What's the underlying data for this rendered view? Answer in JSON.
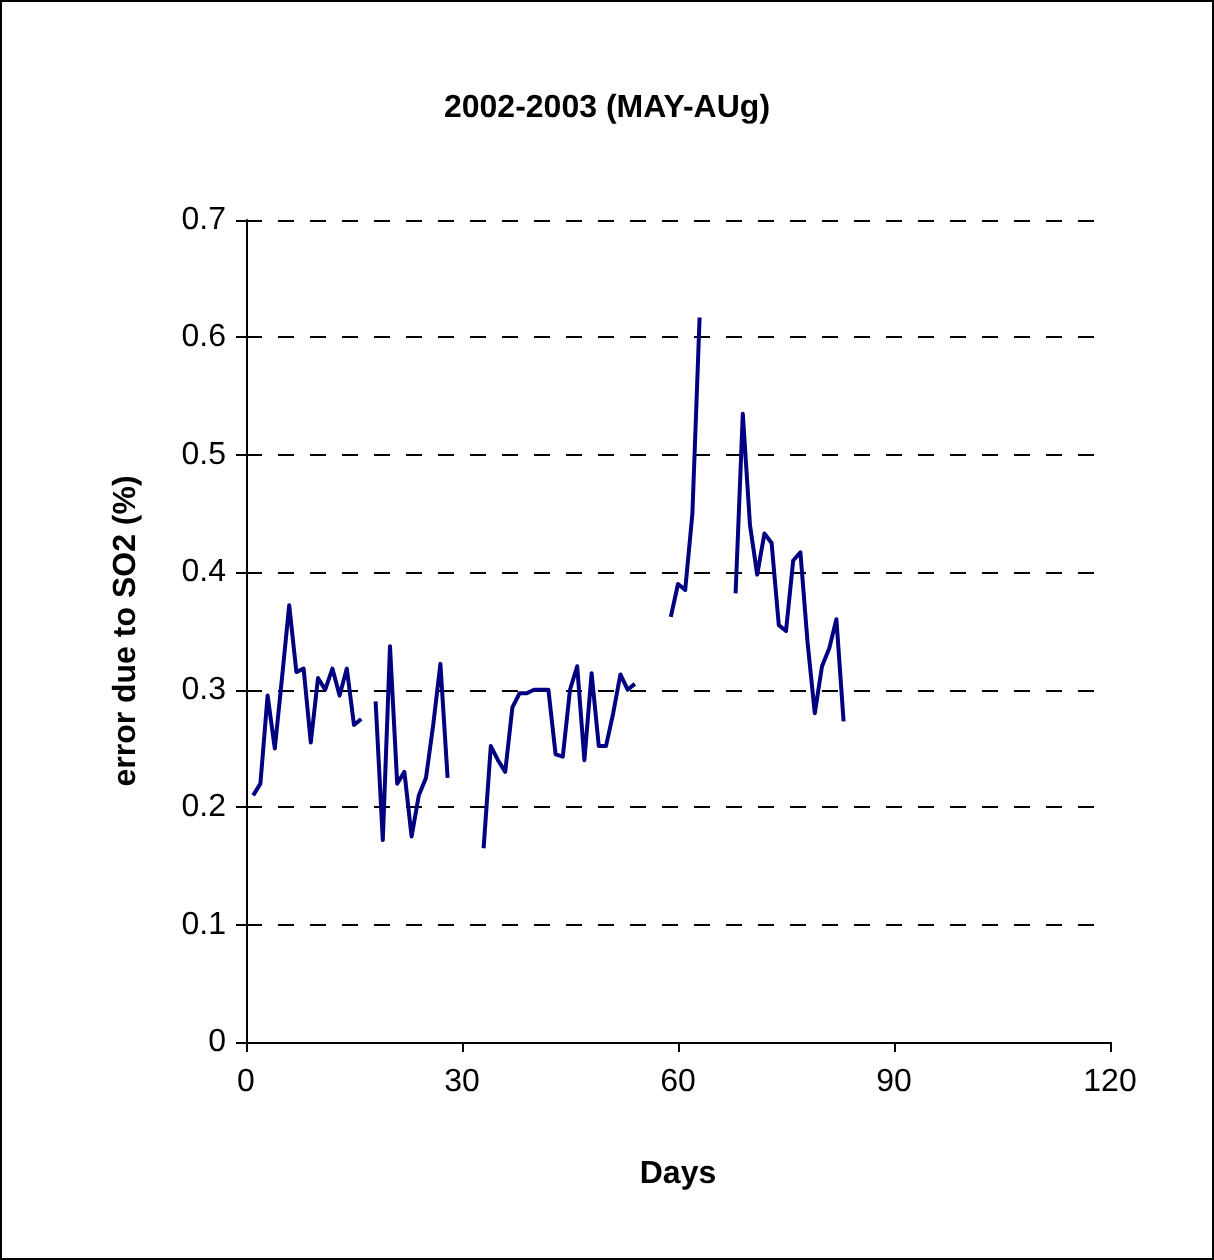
{
  "chart_data": {
    "type": "line",
    "title": "2002-2003 (MAY-AUg)",
    "xlabel": "Days",
    "ylabel": "error due to SO2 (%)",
    "x": [
      1,
      2,
      3,
      4,
      5,
      6,
      7,
      8,
      9,
      10,
      11,
      12,
      13,
      14,
      15,
      16,
      17,
      18,
      19,
      20,
      21,
      22,
      23,
      24,
      25,
      26,
      27,
      28,
      29,
      30,
      31,
      32,
      33,
      34,
      35,
      36,
      37,
      38,
      39,
      40,
      41,
      42,
      43,
      44,
      45,
      46,
      47,
      48,
      49,
      50,
      51,
      52,
      53,
      54,
      55,
      56,
      57,
      58,
      59,
      60,
      61,
      62,
      63,
      64,
      65,
      66,
      67,
      68,
      69,
      70,
      71,
      72,
      73,
      74,
      75,
      76,
      77,
      78,
      79,
      80,
      81,
      82,
      83
    ],
    "series": [
      {
        "color": "#000080",
        "values": [
          0.21,
          0.22,
          0.295,
          0.25,
          0.31,
          0.372,
          0.315,
          0.318,
          0.255,
          0.31,
          0.3,
          0.318,
          0.295,
          0.318,
          0.27,
          0.275,
          null,
          0.29,
          0.172,
          0.337,
          0.22,
          0.23,
          0.175,
          0.21,
          0.225,
          0.27,
          0.322,
          0.225,
          null,
          null,
          null,
          null,
          0.165,
          0.252,
          0.24,
          0.23,
          0.285,
          0.297,
          0.297,
          0.3,
          0.3,
          0.3,
          0.245,
          0.243,
          0.3,
          0.32,
          0.24,
          0.314,
          0.252,
          0.252,
          0.28,
          0.313,
          0.3,
          0.305,
          null,
          null,
          null,
          null,
          0.362,
          0.39,
          0.385,
          0.45,
          0.617,
          null,
          null,
          null,
          null,
          0.382,
          0.535,
          0.44,
          0.398,
          0.433,
          0.425,
          0.355,
          0.35,
          0.41,
          0.417,
          0.34,
          0.28,
          0.32,
          0.335,
          0.36,
          0.273
        ]
      }
    ],
    "xlim": [
      0,
      120
    ],
    "xticks": [
      0,
      30,
      60,
      90,
      120
    ],
    "ylim": [
      0,
      0.7
    ],
    "yticks": [
      0,
      0.1,
      0.2,
      0.3,
      0.4,
      0.5,
      0.6,
      0.7
    ],
    "grid": "y",
    "marker": "none",
    "line_style": "solid"
  }
}
